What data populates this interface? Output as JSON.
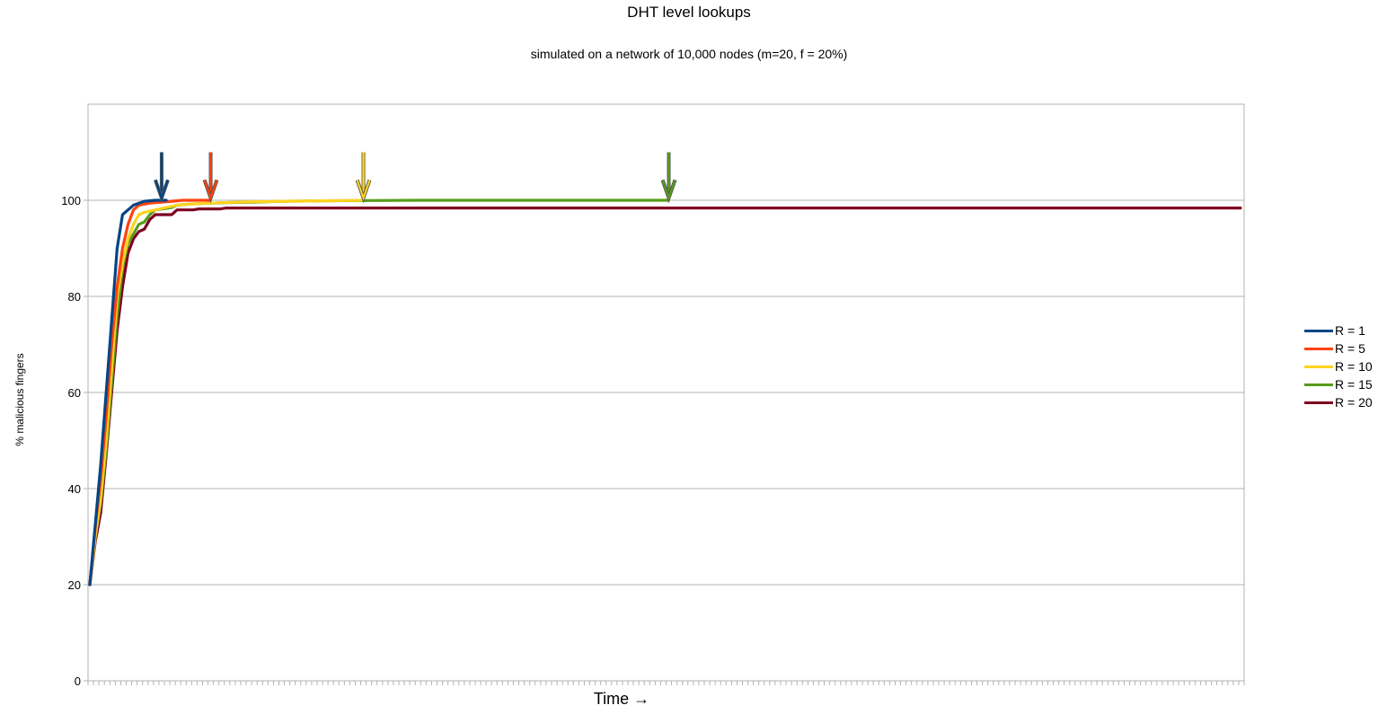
{
  "chart_data": {
    "type": "line",
    "title": "DHT level lookups",
    "subtitle": "simulated on a network of 10,000 nodes (m=20, f = 20%)",
    "xlabel": "Time →",
    "ylabel": "% malicious fingers",
    "ylim": [
      0,
      120
    ],
    "yticks": [
      0,
      20,
      40,
      60,
      80,
      100
    ],
    "x_categories": 212,
    "grid": true,
    "legend_position": "right",
    "series": [
      {
        "name": "R = 1",
        "color": "#004586",
        "points": [
          [
            0,
            20
          ],
          [
            2,
            45
          ],
          [
            3,
            60
          ],
          [
            4,
            75
          ],
          [
            5,
            90
          ],
          [
            6,
            97
          ],
          [
            7,
            98
          ],
          [
            8,
            99
          ],
          [
            10,
            99.8
          ],
          [
            12,
            100
          ],
          [
            14,
            100
          ]
        ],
        "end_x": 14
      },
      {
        "name": "R = 5",
        "color": "#ff420e",
        "points": [
          [
            0,
            20
          ],
          [
            1,
            32
          ],
          [
            2,
            42
          ],
          [
            3,
            55
          ],
          [
            4,
            70
          ],
          [
            5,
            82
          ],
          [
            6,
            90
          ],
          [
            7,
            95
          ],
          [
            8,
            98
          ],
          [
            9,
            99
          ],
          [
            10,
            99.2
          ],
          [
            11,
            99.4
          ],
          [
            13,
            99.6
          ],
          [
            15,
            99.8
          ],
          [
            17,
            100
          ],
          [
            22,
            100
          ]
        ],
        "end_x": 22
      },
      {
        "name": "R = 10",
        "color": "#ffd320",
        "points": [
          [
            0,
            20
          ],
          [
            1,
            30
          ],
          [
            2,
            38
          ],
          [
            3,
            50
          ],
          [
            4,
            65
          ],
          [
            5,
            80
          ],
          [
            6,
            87
          ],
          [
            7,
            92
          ],
          [
            8,
            95
          ],
          [
            9,
            97
          ],
          [
            10,
            97.5
          ],
          [
            12,
            98
          ],
          [
            14,
            98.5
          ],
          [
            16,
            99
          ],
          [
            20,
            99.3
          ],
          [
            24,
            99.5
          ],
          [
            30,
            99.7
          ],
          [
            36,
            99.8
          ],
          [
            44,
            99.9
          ],
          [
            50,
            100
          ]
        ],
        "end_x": 50
      },
      {
        "name": "R = 15",
        "color": "#579d1c",
        "points": [
          [
            0,
            20
          ],
          [
            1,
            30
          ],
          [
            2,
            37
          ],
          [
            3,
            48
          ],
          [
            4,
            62
          ],
          [
            5,
            76
          ],
          [
            6,
            86
          ],
          [
            7,
            91
          ],
          [
            8,
            93
          ],
          [
            9,
            95
          ],
          [
            10,
            95.5
          ],
          [
            11,
            97
          ],
          [
            12,
            98
          ],
          [
            14,
            98.3
          ],
          [
            15,
            98.5
          ],
          [
            16,
            99
          ],
          [
            18,
            99.2
          ],
          [
            20,
            99.3
          ],
          [
            25,
            99.5
          ],
          [
            30,
            99.6
          ],
          [
            35,
            99.8
          ],
          [
            45,
            99.9
          ],
          [
            60,
            100
          ],
          [
            106,
            100
          ]
        ],
        "end_x": 106
      },
      {
        "name": "R = 20",
        "color": "#7e0021",
        "points": [
          [
            0,
            20
          ],
          [
            1,
            29
          ],
          [
            2,
            35
          ],
          [
            3,
            47
          ],
          [
            4,
            60
          ],
          [
            5,
            73
          ],
          [
            6,
            82
          ],
          [
            7,
            89
          ],
          [
            8,
            92
          ],
          [
            9,
            93.5
          ],
          [
            10,
            94
          ],
          [
            11,
            96
          ],
          [
            12,
            97
          ],
          [
            15,
            97
          ],
          [
            16,
            98
          ],
          [
            19,
            98
          ],
          [
            20,
            98.2
          ],
          [
            24,
            98.2
          ],
          [
            25,
            98.4
          ],
          [
            211,
            98.4
          ]
        ],
        "end_x": 211
      }
    ],
    "markers": [
      {
        "series": "R = 1",
        "color": "#004586",
        "x": 13
      },
      {
        "series": "R = 5",
        "color": "#ff420e",
        "x": 22
      },
      {
        "series": "R = 10",
        "color": "#ffd320",
        "x": 50
      },
      {
        "series": "R = 15",
        "color": "#579d1c",
        "x": 106
      }
    ]
  }
}
